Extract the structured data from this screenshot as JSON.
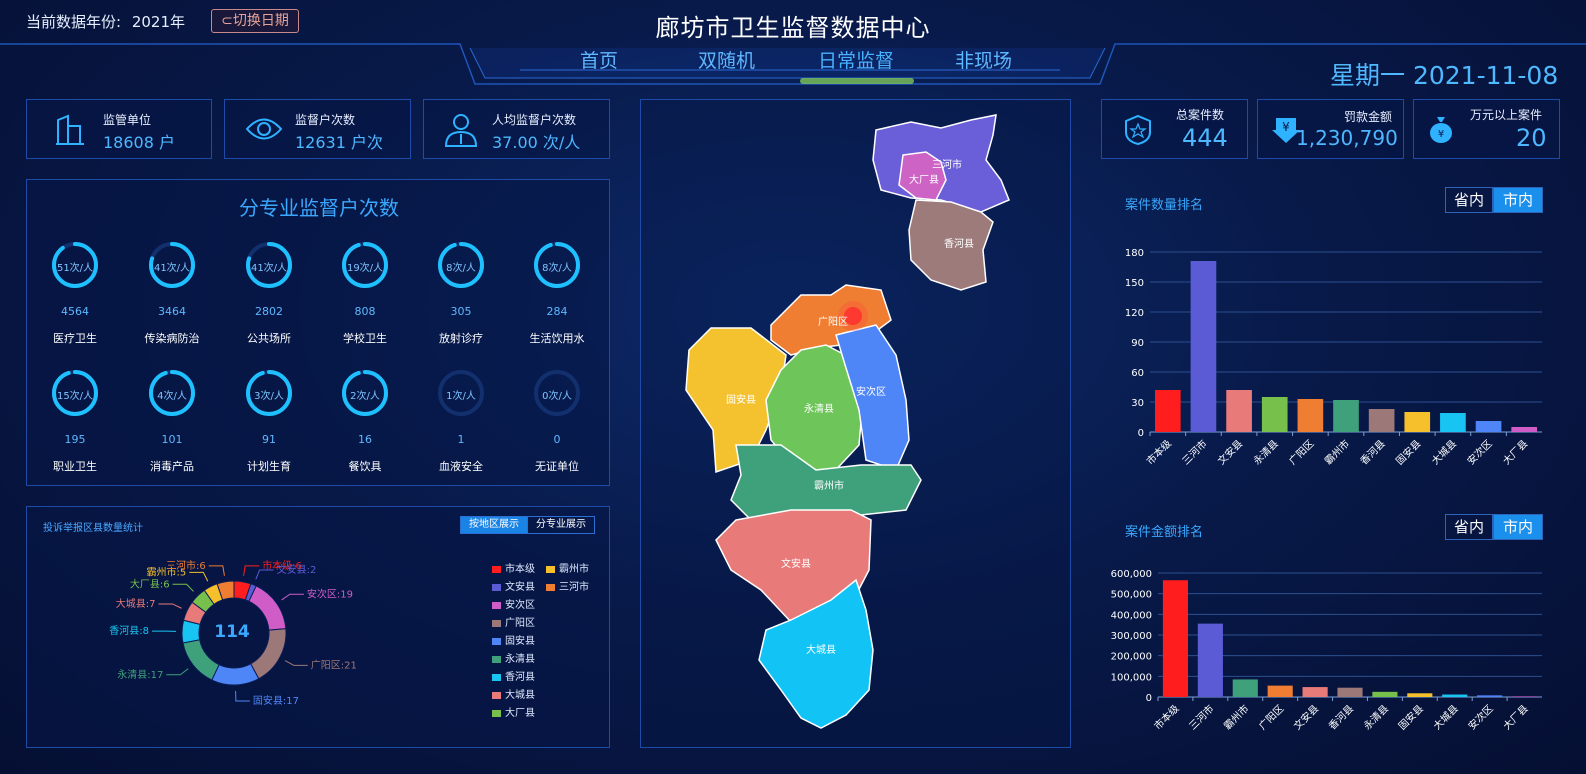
{
  "header": {
    "year_label": "当前数据年份:",
    "year_value": "2021年",
    "switch_button": "⊂切换日期",
    "title": "廊坊市卫生监督数据中心",
    "nav": [
      "首页",
      "双随机",
      "日常监督",
      "非现场"
    ],
    "date": "星期一 2021-11-08"
  },
  "kpis_left": [
    {
      "label": "监管单位",
      "value": "18608 户",
      "icon": "building-icon"
    },
    {
      "label": "监督户次数",
      "value": "12631 户次",
      "icon": "eye-icon"
    },
    {
      "label": "人均监督户次数",
      "value": "37.00 次/人",
      "icon": "person-icon"
    }
  ],
  "kpis_right": [
    {
      "label": "总案件数",
      "value": "444",
      "icon": "shield-icon"
    },
    {
      "label": "罚款金额",
      "value": "1,230,790",
      "icon": "yen-arrow-icon"
    },
    {
      "label": "万元以上案件",
      "value": "20",
      "icon": "money-bag-icon"
    }
  ],
  "profession": {
    "title": "分专业监督户次数",
    "items": [
      {
        "ratio_label": "51次/人",
        "count": "4564",
        "name": "医疗卫生",
        "fill": 0.9
      },
      {
        "ratio_label": "41次/人",
        "count": "3464",
        "name": "传染病防治",
        "fill": 0.8
      },
      {
        "ratio_label": "41次/人",
        "count": "2802",
        "name": "公共场所",
        "fill": 0.8
      },
      {
        "ratio_label": "19次/人",
        "count": "808",
        "name": "学校卫生",
        "fill": 0.95
      },
      {
        "ratio_label": "8次/人",
        "count": "305",
        "name": "放射诊疗",
        "fill": 0.95
      },
      {
        "ratio_label": "8次/人",
        "count": "284",
        "name": "生活饮用水",
        "fill": 0.95
      },
      {
        "ratio_label": "15次/人",
        "count": "195",
        "name": "职业卫生",
        "fill": 0.95
      },
      {
        "ratio_label": "4次/人",
        "count": "101",
        "name": "消毒产品",
        "fill": 0.95
      },
      {
        "ratio_label": "3次/人",
        "count": "91",
        "name": "计划生育",
        "fill": 0.95
      },
      {
        "ratio_label": "2次/人",
        "count": "16",
        "name": "餐饮具",
        "fill": 0.95
      },
      {
        "ratio_label": "1次/人",
        "count": "1",
        "name": "血液安全",
        "fill": 0.0
      },
      {
        "ratio_label": "0次/人",
        "count": "0",
        "name": "无证单位",
        "fill": 0.0
      }
    ]
  },
  "complaints": {
    "title": "投诉举报区县数量统计",
    "tabs": [
      "按地区展示",
      "分专业展示"
    ],
    "center_total": "114",
    "slices": [
      {
        "name": "市本级",
        "value": 6,
        "label": "市本级:6",
        "color": "#ff1d1d"
      },
      {
        "name": "文安县",
        "value": 2,
        "label": "文安县:2",
        "color": "#5b5bd6"
      },
      {
        "name": "安次区",
        "value": 19,
        "label": "安次区:19",
        "color": "#d05cc8"
      },
      {
        "name": "广阳区",
        "value": 21,
        "label": "广阳区:21",
        "color": "#9c7878"
      },
      {
        "name": "固安县",
        "value": 17,
        "label": "固安县:17",
        "color": "#4f86f7"
      },
      {
        "name": "永清县",
        "value": 17,
        "label": "永清县:17",
        "color": "#3fa07c"
      },
      {
        "name": "香河县",
        "value": 8,
        "label": "香河县:8",
        "color": "#18c5f2"
      },
      {
        "name": "大城县",
        "value": 7,
        "label": "大城县:7",
        "color": "#e87a7a"
      },
      {
        "name": "大厂县",
        "value": 6,
        "label": "大厂县:6",
        "color": "#78c04c"
      },
      {
        "name": "霸州市",
        "value": 5,
        "label": "霸州市:5",
        "color": "#f5c02b"
      },
      {
        "name": "三河市",
        "value": 6,
        "label": "三河市:6",
        "color": "#ef7d32"
      }
    ],
    "legend": [
      {
        "name": "市本级",
        "color": "#ff1d1d"
      },
      {
        "name": "霸州市",
        "color": "#f5c02b"
      },
      {
        "name": "文安县",
        "color": "#5b5bd6"
      },
      {
        "name": "三河市",
        "color": "#ef7d32"
      },
      {
        "name": "安次区",
        "color": "#d05cc8"
      },
      {
        "name": "广阳区",
        "color": "#9c7878"
      },
      {
        "name": "固安县",
        "color": "#4f86f7"
      },
      {
        "name": "永清县",
        "color": "#3fa07c"
      },
      {
        "name": "香河县",
        "color": "#18c5f2"
      },
      {
        "name": "大城县",
        "color": "#e87a7a"
      },
      {
        "name": "大厂县",
        "color": "#78c04c"
      }
    ]
  },
  "map": {
    "regions": [
      "三河市",
      "大厂县",
      "香河县",
      "广阳区",
      "固安县",
      "永清县",
      "安次区",
      "霸州市",
      "文安县",
      "大城县"
    ]
  },
  "toggle_labels": [
    "省内",
    "市内"
  ],
  "chart_data": [
    {
      "type": "bar",
      "title": "案件数量排名",
      "categories": [
        "市本级",
        "三河市",
        "文安县",
        "永清县",
        "广阳区",
        "霸州市",
        "香河县",
        "固安县",
        "大城县",
        "安次区",
        "大厂县"
      ],
      "values": [
        42,
        171,
        42,
        35,
        33,
        32,
        23,
        20,
        19,
        11,
        5
      ],
      "colors": [
        "#ff1d1d",
        "#5b5bd6",
        "#e87a7a",
        "#78c04c",
        "#ef7d32",
        "#3fa07c",
        "#9c7878",
        "#f5c02b",
        "#18c5f2",
        "#4f86f7",
        "#d05cc8"
      ],
      "ylim": [
        0,
        180
      ],
      "yticks": [
        "0",
        "30",
        "60",
        "90",
        "120",
        "150",
        "180"
      ]
    },
    {
      "type": "bar",
      "title": "案件金额排名",
      "categories": [
        "市本级",
        "三河市",
        "霸州市",
        "广阳区",
        "文安县",
        "香河县",
        "永清县",
        "固安县",
        "大城县",
        "安次区",
        "大厂县"
      ],
      "values": [
        565000,
        355000,
        85000,
        55000,
        48000,
        45000,
        25000,
        18000,
        12000,
        8000,
        3000
      ],
      "colors": [
        "#ff1d1d",
        "#5b5bd6",
        "#3fa07c",
        "#ef7d32",
        "#e87a7a",
        "#9c7878",
        "#78c04c",
        "#f5c02b",
        "#18c5f2",
        "#4f86f7",
        "#d05cc8"
      ],
      "ylim": [
        0,
        600000
      ],
      "yticks": [
        "0",
        "100,000",
        "200,000",
        "300,000",
        "400,000",
        "500,000",
        "600,000"
      ]
    }
  ]
}
